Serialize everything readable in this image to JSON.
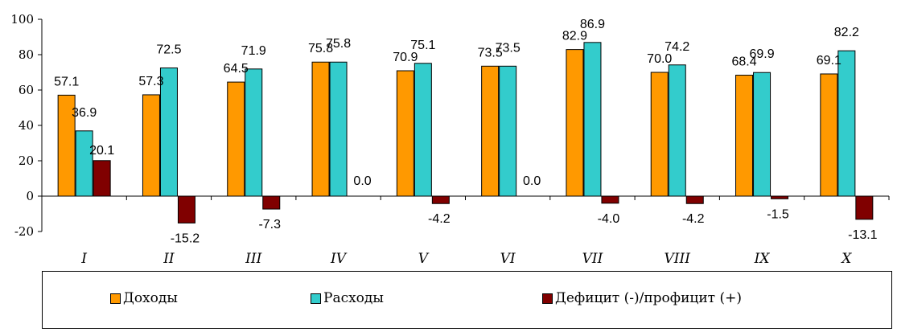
{
  "chart_data": {
    "type": "bar",
    "categories": [
      "I",
      "II",
      "III",
      "IV",
      "V",
      "VI",
      "VII",
      "VIII",
      "IX",
      "X"
    ],
    "series": [
      {
        "name": "Доходы",
        "color": "#FF9900",
        "values": [
          57.1,
          57.3,
          64.5,
          75.8,
          70.9,
          73.5,
          82.9,
          70.0,
          68.4,
          69.1
        ]
      },
      {
        "name": "Расходы",
        "color": "#33CCCC",
        "values": [
          36.9,
          72.5,
          71.9,
          75.8,
          75.1,
          73.5,
          86.9,
          74.2,
          69.9,
          82.2
        ]
      },
      {
        "name": "Дефицит (-)/профицит (+)",
        "color": "#800000",
        "values": [
          20.1,
          -15.2,
          -7.3,
          0.0,
          -4.2,
          0.0,
          -4.0,
          -4.2,
          -1.5,
          -13.1
        ]
      }
    ],
    "ylim": [
      -20,
      100
    ],
    "yticks": [
      "-20",
      "0",
      "20",
      "40",
      "60",
      "80",
      "100"
    ],
    "grid": false,
    "legend_position": "bottom",
    "data_labels": {
      "Доходы": [
        "57.1",
        "57.3",
        "64.5",
        "75.8",
        "70.9",
        "73.5",
        "82.9",
        "70.0",
        "68.4",
        "69.1"
      ],
      "Расходы": [
        "36.9",
        "72.5",
        "71.9",
        "75.8",
        "75.1",
        "73.5",
        "86.9",
        "74.2",
        "69.9",
        "82.2"
      ],
      "Дефицит (-)/профицит (+)": [
        "20.1",
        "-15.2",
        "-7.3",
        "0.0",
        "-4.2",
        "0.0",
        "-4.0",
        "-4.2",
        "-1.5",
        "-13.1"
      ]
    }
  }
}
